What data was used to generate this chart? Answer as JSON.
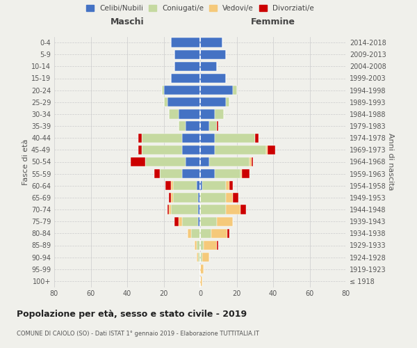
{
  "age_groups": [
    "100+",
    "95-99",
    "90-94",
    "85-89",
    "80-84",
    "75-79",
    "70-74",
    "65-69",
    "60-64",
    "55-59",
    "50-54",
    "45-49",
    "40-44",
    "35-39",
    "30-34",
    "25-29",
    "20-24",
    "15-19",
    "10-14",
    "5-9",
    "0-4"
  ],
  "birth_years": [
    "≤ 1918",
    "1919-1923",
    "1924-1928",
    "1929-1933",
    "1934-1938",
    "1939-1943",
    "1944-1948",
    "1949-1953",
    "1954-1958",
    "1959-1963",
    "1964-1968",
    "1969-1973",
    "1974-1978",
    "1979-1983",
    "1984-1988",
    "1989-1993",
    "1994-1998",
    "1999-2003",
    "2004-2008",
    "2009-2013",
    "2014-2018"
  ],
  "maschi": {
    "celibi": [
      0,
      0,
      0,
      0,
      0,
      1,
      1,
      1,
      2,
      10,
      8,
      10,
      10,
      8,
      12,
      18,
      20,
      16,
      14,
      14,
      16
    ],
    "coniugati": [
      0,
      0,
      1,
      2,
      5,
      9,
      15,
      14,
      13,
      12,
      22,
      22,
      22,
      4,
      5,
      2,
      1,
      0,
      0,
      0,
      0
    ],
    "vedovi": [
      0,
      0,
      1,
      1,
      2,
      2,
      1,
      1,
      1,
      0,
      0,
      0,
      0,
      0,
      0,
      0,
      0,
      0,
      0,
      0,
      0
    ],
    "divorziati": [
      0,
      0,
      0,
      0,
      0,
      2,
      1,
      1,
      3,
      3,
      8,
      2,
      2,
      0,
      0,
      0,
      0,
      0,
      0,
      0,
      0
    ]
  },
  "femmine": {
    "nubili": [
      0,
      0,
      0,
      0,
      0,
      0,
      0,
      0,
      1,
      8,
      5,
      8,
      8,
      5,
      8,
      14,
      18,
      14,
      9,
      14,
      12
    ],
    "coniugate": [
      0,
      0,
      1,
      2,
      6,
      9,
      14,
      14,
      13,
      14,
      22,
      28,
      22,
      4,
      5,
      2,
      2,
      0,
      0,
      0,
      0
    ],
    "vedove": [
      1,
      2,
      4,
      7,
      9,
      9,
      8,
      4,
      2,
      1,
      1,
      1,
      0,
      0,
      0,
      0,
      0,
      0,
      0,
      0,
      0
    ],
    "divorziate": [
      0,
      0,
      0,
      1,
      1,
      0,
      3,
      3,
      2,
      4,
      1,
      4,
      2,
      1,
      0,
      0,
      0,
      0,
      0,
      0,
      0
    ]
  },
  "colors": {
    "celibi": "#4472c4",
    "coniugati": "#c5d9a0",
    "vedovi": "#f5c97a",
    "divorziati": "#cc0000"
  },
  "xlim": 80,
  "title": "Popolazione per età, sesso e stato civile - 2019",
  "subtitle": "COMUNE DI CAIOLO (SO) - Dati ISTAT 1° gennaio 2019 - Elaborazione TUTTITALIA.IT",
  "ylabel_left": "Fasce di età",
  "ylabel_right": "Anni di nascita",
  "xlabel_left": "Maschi",
  "xlabel_right": "Femmine",
  "legend_labels": [
    "Celibi/Nubili",
    "Coniugati/e",
    "Vedovi/e",
    "Divorziati/e"
  ],
  "bg_color": "#f0f0eb"
}
